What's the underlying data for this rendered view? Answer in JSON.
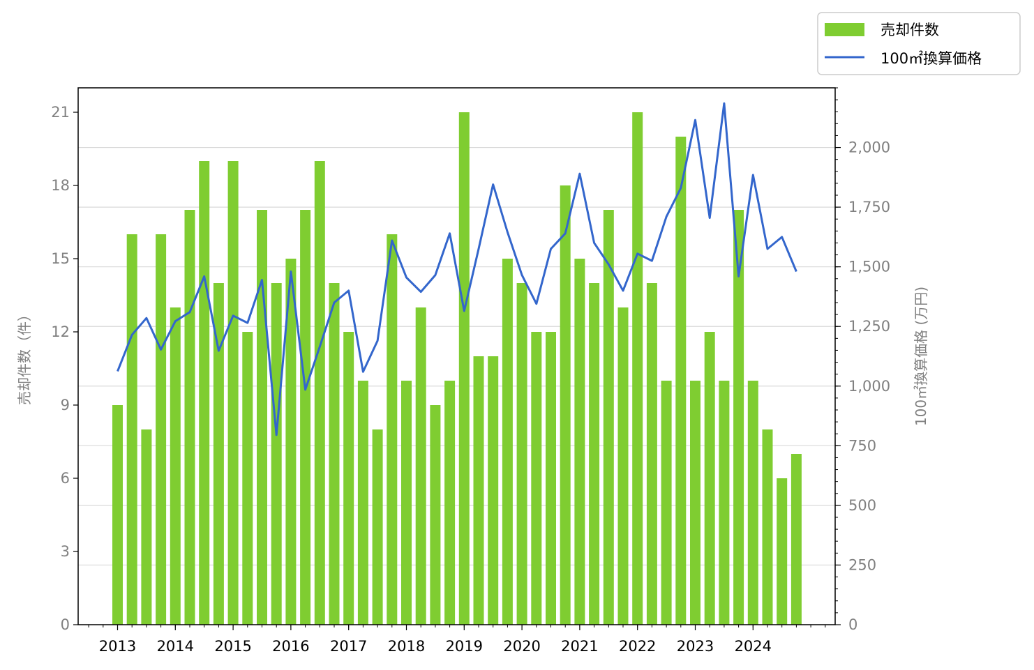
{
  "chart_data": {
    "type": "bar",
    "x_tick_labels": [
      "2013",
      "2014",
      "2015",
      "2016",
      "2017",
      "2018",
      "2019",
      "2020",
      "2021",
      "2022",
      "2023",
      "2024"
    ],
    "left_axis": {
      "label": "売却件数（件）",
      "ylim": [
        0,
        22
      ],
      "ticks": [
        0,
        3,
        6,
        9,
        12,
        15,
        18,
        21
      ]
    },
    "right_axis": {
      "label": "100㎡換算価格 (万円)",
      "ylim": [
        0,
        2250
      ],
      "ticks": [
        "0",
        "250",
        "500",
        "750",
        "1,000",
        "1,250",
        "1,500",
        "1,750",
        "2,000"
      ],
      "tick_values": [
        0,
        250,
        500,
        750,
        1000,
        1250,
        1500,
        1750,
        2000
      ]
    },
    "grid": true,
    "legend_position": "upper right (outside)",
    "series": [
      {
        "name": "売却件数",
        "kind": "bar",
        "axis": "left",
        "color": "#7fcd31",
        "values": [
          9,
          16,
          8,
          16,
          13,
          17,
          19,
          14,
          19,
          12,
          17,
          14,
          15,
          17,
          19,
          14,
          12,
          10,
          8,
          16,
          10,
          13,
          9,
          10,
          21,
          11,
          11,
          15,
          14,
          12,
          12,
          18,
          15,
          14,
          17,
          13,
          21,
          14,
          10,
          20,
          10,
          12,
          10,
          17,
          10,
          8,
          6,
          7
        ]
      },
      {
        "name": "100㎡換算価格",
        "kind": "line",
        "axis": "right",
        "color": "#3366cc",
        "values": [
          1062,
          1215,
          1285,
          1153,
          1272,
          1310,
          1460,
          1148,
          1295,
          1265,
          1445,
          795,
          1480,
          985,
          1165,
          1350,
          1400,
          1060,
          1190,
          1610,
          1455,
          1395,
          1465,
          1640,
          1315,
          1575,
          1845,
          1645,
          1465,
          1345,
          1575,
          1640,
          1890,
          1600,
          1510,
          1400,
          1555,
          1525,
          1710,
          1830,
          2115,
          1705,
          2185,
          1460,
          1885,
          1575,
          1625,
          1480
        ]
      }
    ]
  }
}
